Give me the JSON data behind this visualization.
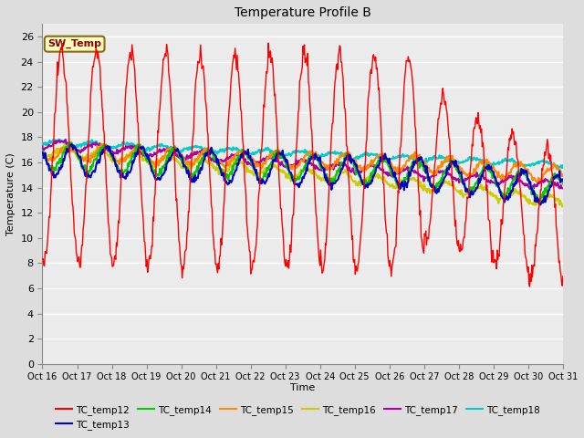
{
  "title": "Temperature Profile B",
  "xlabel": "Time",
  "ylabel": "Temperature (C)",
  "ylim": [
    0,
    27
  ],
  "yticks": [
    0,
    2,
    4,
    6,
    8,
    10,
    12,
    14,
    16,
    18,
    20,
    22,
    24,
    26
  ],
  "xtick_labels": [
    "Oct 16",
    "Oct 17",
    "Oct 18",
    "Oct 19",
    "Oct 20",
    "Oct 21",
    "Oct 22",
    "Oct 23",
    "Oct 24",
    "Oct 25",
    "Oct 26",
    "Oct 27",
    "Oct 28",
    "Oct 29",
    "Oct 30",
    "Oct 31"
  ],
  "annotation_text": "SW_Temp",
  "colors": {
    "TC_temp12": "#ff0000",
    "TC_temp13": "#0000cc",
    "TC_temp14": "#00cc00",
    "TC_temp15": "#ff8800",
    "TC_temp16": "#cccc00",
    "TC_temp17": "#aa00aa",
    "TC_temp18": "#00cccc"
  },
  "bg_color": "#dddddd",
  "plot_bg": "#ebebeb",
  "grid_color": "#ffffff"
}
